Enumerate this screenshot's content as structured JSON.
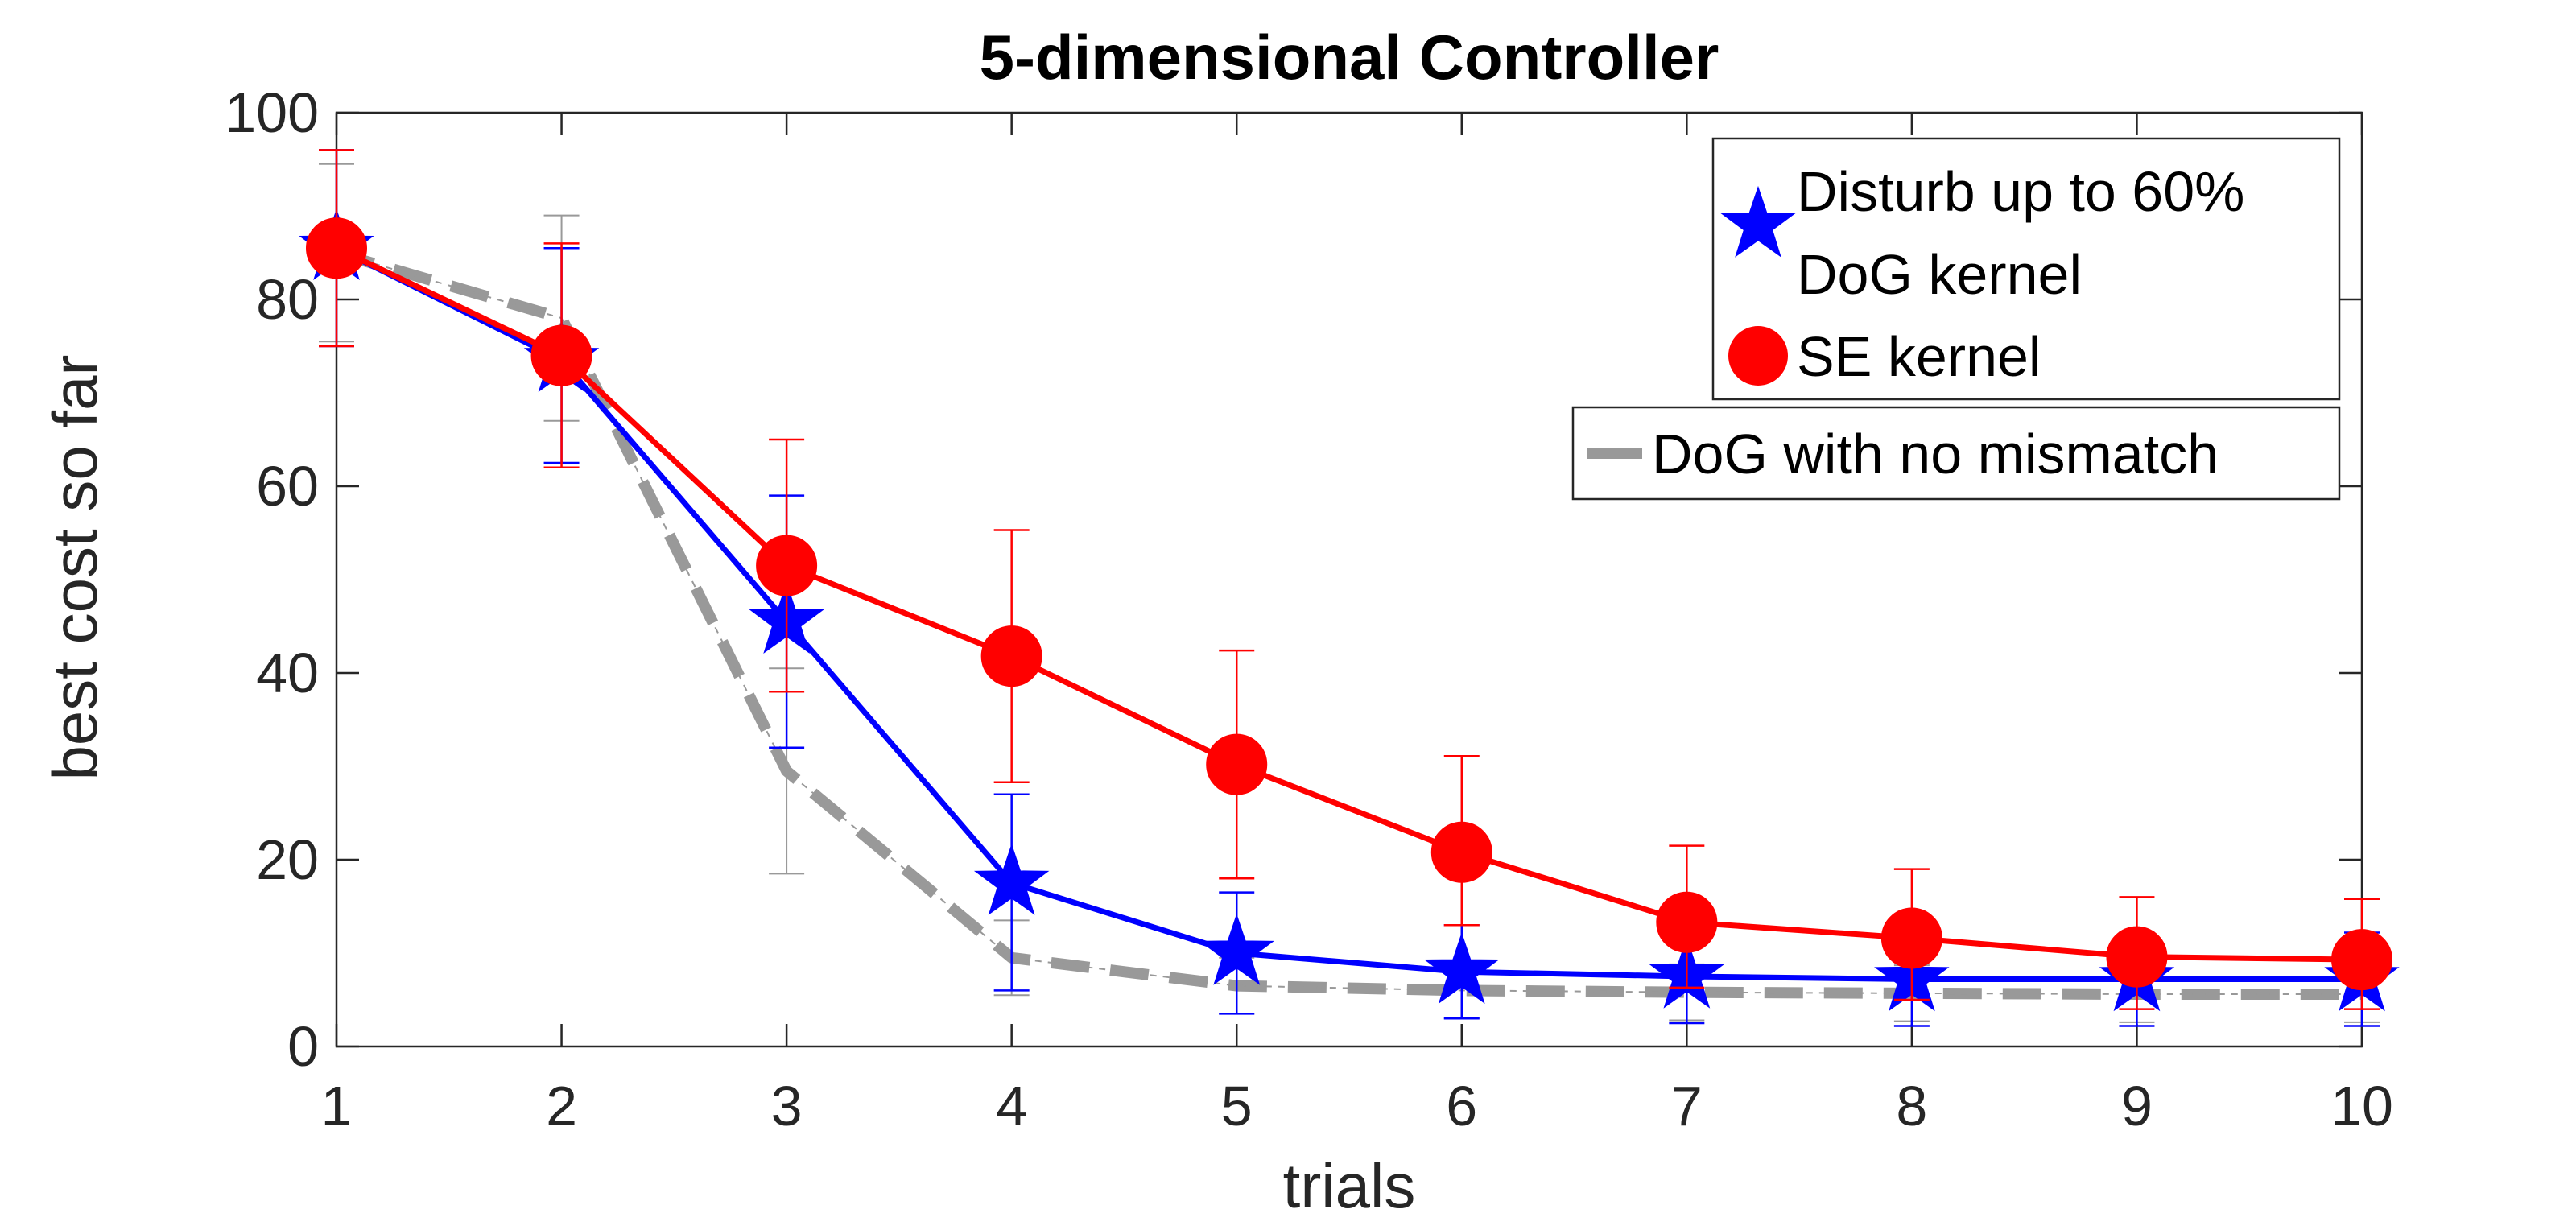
{
  "chart_data": {
    "type": "line",
    "title": "5-dimensional Controller",
    "xlabel": "trials",
    "ylabel": "best cost so far",
    "xlim": [
      1,
      10
    ],
    "ylim": [
      0,
      100
    ],
    "x": [
      1,
      2,
      3,
      4,
      5,
      6,
      7,
      8,
      9,
      10
    ],
    "xticks": [
      "1",
      "2",
      "3",
      "4",
      "5",
      "6",
      "7",
      "8",
      "9",
      "10"
    ],
    "yticks": [
      "0",
      "20",
      "40",
      "60",
      "80",
      "100"
    ],
    "grid": false,
    "series": [
      {
        "name": "Disturb up to 60%\nDoG kernel",
        "legend_lines": [
          "Disturb up to 60%",
          "DoG kernel"
        ],
        "color": "#0000ff",
        "marker": "star",
        "values": [
          85.5,
          73.5,
          45.5,
          17.5,
          10.0,
          8.0,
          7.5,
          7.2,
          7.2,
          7.2
        ],
        "err_low": [
          10.5,
          11.0,
          13.5,
          11.5,
          6.5,
          5.0,
          5.0,
          5.0,
          5.0,
          5.0
        ],
        "err_high": [
          10.5,
          12.0,
          13.5,
          9.5,
          6.5,
          5.0,
          5.0,
          5.0,
          5.0,
          5.0
        ]
      },
      {
        "name": "SE kernel",
        "legend_lines": [
          "SE kernel"
        ],
        "color": "#ff0000",
        "marker": "circle",
        "values": [
          85.5,
          74.0,
          51.5,
          41.8,
          30.2,
          20.8,
          13.3,
          11.6,
          9.6,
          9.3
        ],
        "err_low": [
          10.5,
          12.0,
          13.5,
          13.5,
          12.2,
          7.8,
          7.0,
          6.6,
          5.6,
          5.3
        ],
        "err_high": [
          10.5,
          12.0,
          13.5,
          13.5,
          12.2,
          10.3,
          8.2,
          7.4,
          6.4,
          6.5
        ]
      },
      {
        "name": "DoG with no mismatch",
        "legend_lines": [
          "DoG with no mismatch"
        ],
        "color": "#999999",
        "marker": "none",
        "style": "dashed",
        "values": [
          85.0,
          78.0,
          29.5,
          9.5,
          6.5,
          6.0,
          5.8,
          5.7,
          5.6,
          5.6
        ],
        "err_low": [
          9.5,
          11.0,
          11.0,
          4.0,
          3.0,
          3.0,
          3.0,
          3.0,
          3.0,
          3.0
        ],
        "err_high": [
          9.5,
          11.0,
          11.0,
          4.0,
          3.0,
          3.0,
          3.0,
          3.0,
          3.0,
          3.0
        ]
      }
    ],
    "legend": [
      {
        "location": "top-right",
        "entries": [
          "Disturb up to 60%\nDoG kernel",
          "SE kernel"
        ]
      },
      {
        "location": "upper-right",
        "entries": [
          "DoG with no mismatch"
        ]
      }
    ]
  }
}
